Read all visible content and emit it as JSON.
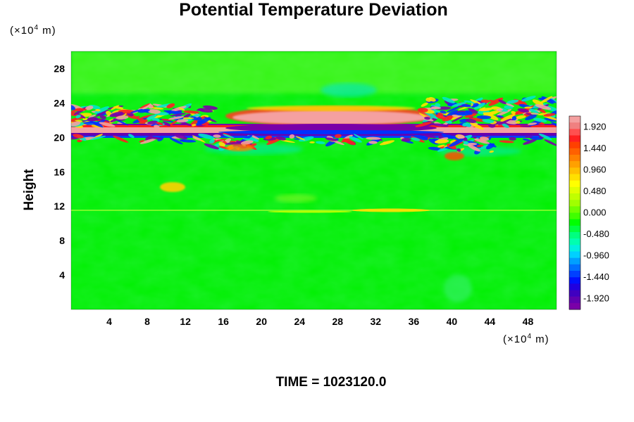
{
  "chart_data": {
    "type": "heatmap",
    "title": "Potential Temperature Deviation",
    "ylabel": "Height",
    "x_unit": {
      "prefix": "(×10",
      "exp": "4",
      "suffix": " m)"
    },
    "y_unit": {
      "prefix": "(×10",
      "exp": "4",
      "suffix": " m)"
    },
    "xlim": [
      0,
      51
    ],
    "ylim": [
      0,
      30
    ],
    "x_ticks": [
      "4",
      "8",
      "12",
      "16",
      "20",
      "24",
      "28",
      "32",
      "36",
      "40",
      "44",
      "48"
    ],
    "y_ticks": [
      "4",
      "8",
      "12",
      "16",
      "20",
      "24",
      "28"
    ],
    "colorbar": {
      "range": [
        -2.16,
        2.16
      ],
      "labels": [
        "1.920",
        "1.440",
        "0.960",
        "0.480",
        "0.000",
        "-0.480",
        "-0.960",
        "-1.440",
        "-1.920"
      ]
    },
    "grid": false,
    "colors": {
      "background_field": "#00ff00",
      "max": "#f4a0a0",
      "min": "#7a00a8"
    }
  },
  "footer": {
    "time_label": "TIME = 1023120.0"
  }
}
